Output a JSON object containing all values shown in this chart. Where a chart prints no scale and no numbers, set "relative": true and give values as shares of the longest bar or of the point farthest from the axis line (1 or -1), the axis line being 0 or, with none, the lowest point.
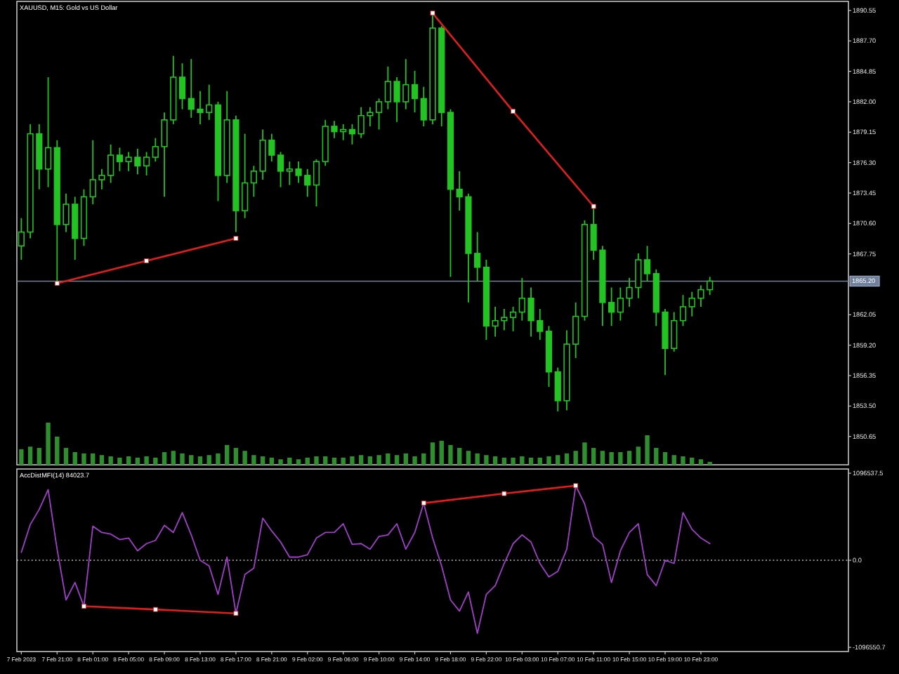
{
  "chart_data": [
    {
      "type": "candlestick",
      "title": "XAUUSD, M15: Gold vs US Dollar",
      "color": "#22c322",
      "categories": [
        null,
        null,
        null,
        null,
        null,
        null,
        null,
        null,
        null,
        null,
        null,
        null,
        null,
        null,
        null,
        null,
        null,
        null,
        null,
        null,
        null,
        null,
        null,
        null,
        null,
        null,
        null,
        null,
        null,
        null,
        null,
        null,
        null,
        null,
        null,
        null,
        null,
        null,
        null,
        null,
        null,
        null,
        null,
        null,
        null,
        null,
        null,
        null,
        null,
        null,
        null,
        null,
        null,
        null,
        null,
        null,
        null,
        null,
        null,
        null,
        null,
        null,
        null,
        null,
        null,
        null,
        null,
        null,
        null,
        null,
        null,
        null,
        null,
        null,
        null,
        null,
        null,
        null,
        null,
        null,
        null,
        null,
        null,
        null,
        null,
        null,
        null,
        null,
        null,
        null,
        null,
        null,
        null
      ],
      "ohlc": [
        [
          1868.5,
          1871.1,
          1867.2,
          1869.8
        ],
        [
          1869.8,
          1879.9,
          1869.2,
          1879.0
        ],
        [
          1879.0,
          1879.9,
          1873.8,
          1875.7
        ],
        [
          1875.7,
          1884.3,
          1874.0,
          1877.7
        ],
        [
          1877.7,
          1878.4,
          1865.1,
          1870.5
        ],
        [
          1870.5,
          1873.4,
          1869.8,
          1872.4
        ],
        [
          1872.4,
          1873.1,
          1867.2,
          1869.2
        ],
        [
          1869.2,
          1873.8,
          1868.5,
          1873.1
        ],
        [
          1873.1,
          1878.4,
          1872.4,
          1874.7
        ],
        [
          1874.7,
          1875.7,
          1873.8,
          1875.1
        ],
        [
          1875.1,
          1878.0,
          1874.4,
          1877.0
        ],
        [
          1877.0,
          1877.7,
          1875.5,
          1876.4
        ],
        [
          1876.4,
          1877.3,
          1875.5,
          1876.8
        ],
        [
          1876.8,
          1877.6,
          1875.2,
          1876.0
        ],
        [
          1876.0,
          1877.3,
          1875.1,
          1876.8
        ],
        [
          1876.8,
          1878.6,
          1876.4,
          1877.8
        ],
        [
          1877.8,
          1881.0,
          1873.1,
          1880.3
        ],
        [
          1880.3,
          1886.3,
          1879.9,
          1884.3
        ],
        [
          1884.3,
          1885.6,
          1881.3,
          1882.3
        ],
        [
          1882.3,
          1886.0,
          1880.5,
          1881.3
        ],
        [
          1881.3,
          1883.0,
          1879.9,
          1881.0
        ],
        [
          1881.0,
          1883.6,
          1880.3,
          1881.7
        ],
        [
          1881.7,
          1882.0,
          1872.7,
          1875.1
        ],
        [
          1875.1,
          1883.0,
          1874.4,
          1880.3
        ],
        [
          1880.3,
          1880.7,
          1869.8,
          1871.8
        ],
        [
          1871.8,
          1879.0,
          1871.1,
          1874.4
        ],
        [
          1874.4,
          1876.0,
          1873.1,
          1875.5
        ],
        [
          1875.5,
          1879.4,
          1874.7,
          1878.4
        ],
        [
          1878.4,
          1879.0,
          1876.4,
          1877.0
        ],
        [
          1877.0,
          1877.3,
          1874.0,
          1875.5
        ],
        [
          1875.5,
          1876.4,
          1874.2,
          1875.7
        ],
        [
          1875.7,
          1876.4,
          1874.4,
          1875.1
        ],
        [
          1875.1,
          1875.7,
          1873.1,
          1874.2
        ],
        [
          1874.2,
          1876.6,
          1872.2,
          1876.4
        ],
        [
          1876.4,
          1880.3,
          1876.0,
          1879.7
        ],
        [
          1879.7,
          1880.2,
          1878.6,
          1879.2
        ],
        [
          1879.2,
          1879.9,
          1878.4,
          1879.4
        ],
        [
          1879.4,
          1879.9,
          1878.0,
          1879.0
        ],
        [
          1879.0,
          1881.5,
          1878.6,
          1880.7
        ],
        [
          1880.7,
          1881.5,
          1879.7,
          1881.0
        ],
        [
          1881.0,
          1882.3,
          1879.4,
          1882.0
        ],
        [
          1882.0,
          1885.3,
          1881.3,
          1883.9
        ],
        [
          1883.9,
          1884.3,
          1880.1,
          1882.0
        ],
        [
          1882.0,
          1886.0,
          1881.3,
          1883.6
        ],
        [
          1883.6,
          1884.9,
          1881.0,
          1882.3
        ],
        [
          1882.3,
          1883.4,
          1879.7,
          1880.3
        ],
        [
          1880.3,
          1890.3,
          1879.9,
          1888.9
        ],
        [
          1888.9,
          1889.1,
          1879.7,
          1881.0
        ],
        [
          1881.0,
          1881.3,
          1865.6,
          1873.8
        ],
        [
          1873.8,
          1875.5,
          1871.8,
          1873.1
        ],
        [
          1873.1,
          1873.4,
          1863.2,
          1867.8
        ],
        [
          1867.8,
          1869.8,
          1865.2,
          1866.5
        ],
        [
          1866.5,
          1867.2,
          1859.7,
          1861.0
        ],
        [
          1861.0,
          1862.8,
          1860.0,
          1861.5
        ],
        [
          1861.5,
          1862.6,
          1860.6,
          1861.8
        ],
        [
          1861.8,
          1862.8,
          1860.5,
          1862.3
        ],
        [
          1862.3,
          1865.5,
          1861.5,
          1863.6
        ],
        [
          1863.6,
          1864.6,
          1860.0,
          1861.5
        ],
        [
          1861.5,
          1862.6,
          1859.7,
          1860.5
        ],
        [
          1860.5,
          1861.0,
          1855.3,
          1856.7
        ],
        [
          1856.7,
          1857.1,
          1853.0,
          1854.0
        ],
        [
          1854.0,
          1860.6,
          1853.1,
          1859.3
        ],
        [
          1859.3,
          1863.2,
          1858.0,
          1861.9
        ],
        [
          1861.9,
          1870.9,
          1861.5,
          1870.5
        ],
        [
          1870.5,
          1872.2,
          1867.2,
          1868.1
        ],
        [
          1868.1,
          1868.5,
          1861.0,
          1863.2
        ],
        [
          1863.2,
          1864.6,
          1861.0,
          1862.3
        ],
        [
          1862.3,
          1864.6,
          1861.5,
          1863.6
        ],
        [
          1863.6,
          1865.5,
          1862.8,
          1864.6
        ],
        [
          1864.6,
          1867.8,
          1863.6,
          1867.2
        ],
        [
          1867.2,
          1868.5,
          1865.2,
          1865.9
        ],
        [
          1865.9,
          1866.3,
          1861.0,
          1862.3
        ],
        [
          1862.3,
          1862.6,
          1856.4,
          1858.9
        ],
        [
          1858.9,
          1862.3,
          1858.6,
          1861.5
        ],
        [
          1861.5,
          1863.9,
          1861.0,
          1862.8
        ],
        [
          1862.8,
          1864.2,
          1861.9,
          1863.6
        ],
        [
          1863.6,
          1864.8,
          1862.8,
          1864.4
        ],
        [
          1864.4,
          1865.6,
          1863.9,
          1865.2
        ],
        null,
        null,
        null,
        null,
        null,
        null,
        null,
        null,
        null,
        null,
        null,
        null,
        null,
        null,
        null
      ],
      "series": [
        {
          "type": "line",
          "color": "#e01e1e",
          "marker": "square",
          "values": [
            null,
            null,
            null,
            null,
            1865.0,
            null,
            null,
            null,
            null,
            null,
            null,
            null,
            null,
            null,
            1867.1,
            null,
            null,
            null,
            null,
            null,
            null,
            null,
            null,
            null,
            1869.2,
            null,
            null,
            null,
            null,
            null,
            null,
            null,
            null,
            null,
            null,
            null,
            null,
            null,
            null,
            null,
            null,
            null,
            null,
            null,
            null,
            null,
            null,
            null,
            null,
            null,
            null,
            null,
            null,
            null,
            null,
            null,
            null,
            null,
            null,
            null,
            null,
            null,
            null,
            null,
            null,
            null,
            null,
            null,
            null,
            null,
            null,
            null,
            null,
            null,
            null,
            null,
            null,
            null,
            null,
            null,
            null,
            null,
            null,
            null,
            null,
            null,
            null,
            null,
            null,
            null,
            null,
            null,
            null
          ]
        },
        {
          "type": "line",
          "color": "#e01e1e",
          "marker": "square",
          "values": [
            null,
            null,
            null,
            null,
            null,
            null,
            null,
            null,
            null,
            null,
            null,
            null,
            null,
            null,
            null,
            null,
            null,
            null,
            null,
            null,
            null,
            null,
            null,
            null,
            null,
            null,
            null,
            null,
            null,
            null,
            null,
            null,
            null,
            null,
            null,
            null,
            null,
            null,
            null,
            null,
            null,
            null,
            null,
            null,
            null,
            null,
            1890.3,
            null,
            null,
            null,
            null,
            null,
            null,
            null,
            null,
            1881.1,
            null,
            null,
            null,
            null,
            null,
            null,
            null,
            null,
            1872.2,
            null,
            null,
            null,
            null,
            null,
            null,
            null,
            null,
            null,
            null,
            null,
            null,
            null,
            null,
            null,
            null,
            null,
            null,
            null,
            null,
            null,
            null,
            null,
            null,
            null,
            null,
            null,
            null
          ]
        }
      ],
      "ref_lines": [
        {
          "axis": "y",
          "value": 1865.2,
          "label": "1865.20",
          "color": "#70809a"
        }
      ],
      "ylim": [
        1848.0,
        1891.4
      ],
      "yticks": [
        1890.55,
        {
          "value": 1887.7,
          "label": "1887.70"
        },
        1884.85,
        {
          "value": 1882,
          "label": "1882.00"
        },
        1879.15,
        {
          "value": 1876.3,
          "label": "1876.30"
        },
        1873.45,
        {
          "value": 1870.6,
          "label": "1870.60"
        },
        1867.75,
        1862.05,
        {
          "value": 1859.2,
          "label": "1859.20"
        },
        1856.35,
        {
          "value": 1853.5,
          "label": "1853.50"
        },
        1850.65
      ]
    },
    {
      "type": "bar",
      "relative": true,
      "color": "#2f8f2f",
      "categories": [
        null,
        null,
        null,
        null,
        null,
        null,
        null,
        null,
        null,
        null,
        null,
        null,
        null,
        null,
        null,
        null,
        null,
        null,
        null,
        null,
        null,
        null,
        null,
        null,
        null,
        null,
        null,
        null,
        null,
        null,
        null,
        null,
        null,
        null,
        null,
        null,
        null,
        null,
        null,
        null,
        null,
        null,
        null,
        null,
        null,
        null,
        null,
        null,
        null,
        null,
        null,
        null,
        null,
        null,
        null,
        null,
        null,
        null,
        null,
        null,
        null,
        null,
        null,
        null,
        null,
        null,
        null,
        null,
        null,
        null,
        null,
        null,
        null,
        null,
        null,
        null,
        null,
        null,
        null,
        null,
        null,
        null,
        null,
        null,
        null,
        null,
        null,
        null,
        null,
        null,
        null,
        null,
        null
      ],
      "values": [
        0.37,
        0.43,
        0.4,
        1,
        0.67,
        0.4,
        0.3,
        0.27,
        0.27,
        0.23,
        0.2,
        0.17,
        0.2,
        0.17,
        0.2,
        0.17,
        0.3,
        0.33,
        0.27,
        0.23,
        0.2,
        0.23,
        0.27,
        0.47,
        0.4,
        0.33,
        0.23,
        0.2,
        0.17,
        0.13,
        0.17,
        0.13,
        0.17,
        0.2,
        0.2,
        0.17,
        0.17,
        0.2,
        0.23,
        0.2,
        0.23,
        0.27,
        0.23,
        0.27,
        0.2,
        0.27,
        0.53,
        0.57,
        0.47,
        0.4,
        0.33,
        0.27,
        0.23,
        0.2,
        0.17,
        0.17,
        0.2,
        0.17,
        0.17,
        0.2,
        0.23,
        0.27,
        0.33,
        0.53,
        0.4,
        0.33,
        0.3,
        0.3,
        0.33,
        0.43,
        0.7,
        0.4,
        0.3,
        0.23,
        0.2,
        0.17,
        0.13,
        0.07,
        null,
        null,
        null,
        null,
        null,
        null,
        null,
        null,
        null,
        null,
        null,
        null,
        null,
        null,
        null
      ]
    },
    {
      "type": "line",
      "title": "AccDistMFI(14) 84023.7",
      "color": "#a040c8",
      "categories": [
        "7 Feb 2023",
        null,
        null,
        null,
        "7 Feb 21:00",
        null,
        null,
        null,
        "8 Feb 01:00",
        null,
        null,
        null,
        "8 Feb 05:00",
        null,
        null,
        null,
        "8 Feb 09:00",
        null,
        null,
        null,
        "8 Feb 13:00",
        null,
        null,
        null,
        "8 Feb 17:00",
        null,
        null,
        null,
        "8 Feb 21:00",
        null,
        null,
        null,
        "9 Feb 02:00",
        null,
        null,
        null,
        "9 Feb 06:00",
        null,
        null,
        null,
        "9 Feb 10:00",
        null,
        null,
        null,
        "9 Feb 14:00",
        null,
        null,
        null,
        "9 Feb 18:00",
        null,
        null,
        null,
        "9 Feb 22:00",
        null,
        null,
        null,
        "10 Feb 03:00",
        null,
        null,
        null,
        "10 Feb 07:00",
        null,
        null,
        null,
        "10 Feb 11:00",
        null,
        null,
        null,
        "10 Feb 15:00",
        null,
        null,
        null,
        "10 Feb 19:00",
        null,
        null,
        null,
        "10 Feb 23:00",
        null,
        null,
        null,
        null,
        null,
        null,
        null,
        null,
        null,
        null,
        null,
        null,
        null,
        null,
        null,
        null
      ],
      "values": [
        100000,
        450000,
        640000,
        890000,
        140000,
        -500000,
        -280000,
        -580000,
        430000,
        350000,
        330000,
        260000,
        280000,
        120000,
        210000,
        250000,
        440000,
        350000,
        600000,
        320000,
        0,
        -70000,
        -430000,
        40000,
        -670000,
        -180000,
        -100000,
        530000,
        370000,
        230000,
        40000,
        40000,
        70000,
        280000,
        350000,
        350000,
        460000,
        200000,
        210000,
        140000,
        300000,
        320000,
        460000,
        140000,
        350000,
        720000,
        280000,
        -70000,
        -500000,
        -640000,
        -400000,
        -920000,
        -430000,
        -320000,
        -40000,
        210000,
        320000,
        230000,
        -40000,
        -210000,
        -140000,
        140000,
        940000,
        710000,
        300000,
        200000,
        -280000,
        120000,
        350000,
        460000,
        -180000,
        -320000,
        0,
        -40000,
        600000,
        390000,
        280000,
        210000,
        null,
        null,
        null,
        null,
        null,
        null,
        null,
        null,
        null,
        null,
        null,
        null,
        null,
        null,
        null
      ],
      "series": [
        {
          "type": "line",
          "color": "#e01e1e",
          "marker": "square",
          "values": [
            null,
            null,
            null,
            null,
            null,
            null,
            null,
            -580000,
            null,
            null,
            null,
            null,
            null,
            null,
            null,
            -620000,
            null,
            null,
            null,
            null,
            null,
            null,
            null,
            null,
            -670000,
            null,
            null,
            null,
            null,
            null,
            null,
            null,
            null,
            null,
            null,
            null,
            null,
            null,
            null,
            null,
            null,
            null,
            null,
            null,
            null,
            null,
            null,
            null,
            null,
            null,
            null,
            null,
            null,
            null,
            null,
            null,
            null,
            null,
            null,
            null,
            null,
            null,
            null,
            null,
            null,
            null,
            null,
            null,
            null,
            null,
            null,
            null,
            null,
            null,
            null,
            null,
            null,
            null,
            null,
            null,
            null,
            null,
            null,
            null,
            null,
            null,
            null,
            null,
            null,
            null,
            null,
            null,
            null
          ]
        },
        {
          "type": "line",
          "color": "#e01e1e",
          "marker": "square",
          "values": [
            null,
            null,
            null,
            null,
            null,
            null,
            null,
            null,
            null,
            null,
            null,
            null,
            null,
            null,
            null,
            null,
            null,
            null,
            null,
            null,
            null,
            null,
            null,
            null,
            null,
            null,
            null,
            null,
            null,
            null,
            null,
            null,
            null,
            null,
            null,
            null,
            null,
            null,
            null,
            null,
            null,
            null,
            null,
            null,
            null,
            720000,
            null,
            null,
            null,
            null,
            null,
            null,
            null,
            null,
            840000,
            null,
            null,
            null,
            null,
            null,
            null,
            null,
            940000,
            null,
            null,
            null,
            null,
            null,
            null,
            null,
            null,
            null,
            null,
            null,
            null,
            null,
            null,
            null,
            null,
            null,
            null,
            null,
            null,
            null,
            null,
            null,
            null,
            null,
            null,
            null,
            null,
            null,
            null
          ]
        }
      ],
      "ref_lines": [
        {
          "axis": "y",
          "value": 0,
          "color": "#b4b4b4",
          "line_style": "dotted"
        }
      ],
      "ylim": [
        -1150000,
        1150000
      ],
      "yticks": [
        1096537.5,
        {
          "value": 0,
          "label": "0.0"
        },
        -1096550.7
      ]
    }
  ]
}
